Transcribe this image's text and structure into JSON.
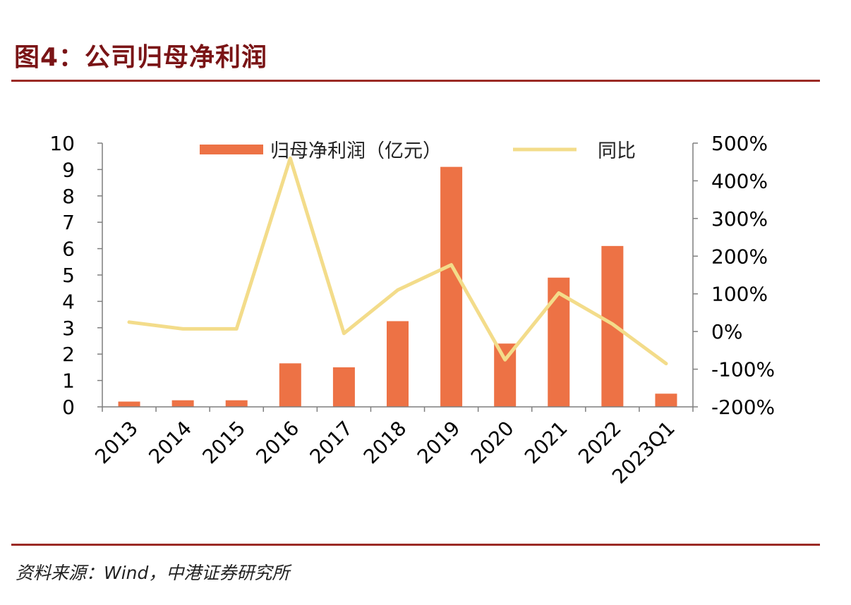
{
  "figure": {
    "title": "图4：公司归母净利润",
    "source": "资料来源：Wind，中港证券研究所"
  },
  "colors": {
    "bar": "#ed7245",
    "line": "#f3dc8a",
    "title": "#7a1416",
    "rule": "#9b2a25",
    "axis": "#7f7f7f"
  },
  "chart_data": {
    "type": "bar",
    "categories": [
      "2013",
      "2014",
      "2015",
      "2016",
      "2017",
      "2018",
      "2019",
      "2020",
      "2021",
      "2022",
      "2023Q1"
    ],
    "series": [
      {
        "name": "归母净利润（亿元）",
        "type": "bar",
        "axis": "left",
        "values": [
          0.2,
          0.25,
          0.25,
          1.65,
          1.5,
          3.25,
          9.1,
          2.4,
          4.9,
          6.1,
          0.5
        ]
      },
      {
        "name": "同比",
        "type": "line",
        "axis": "right",
        "values": [
          25,
          7,
          7,
          460,
          -5,
          110,
          177,
          -75,
          102,
          20,
          -85
        ]
      }
    ],
    "ylim": [
      0,
      10
    ],
    "y2lim": [
      -200,
      500
    ],
    "yticks": [
      "0",
      "1",
      "2",
      "3",
      "4",
      "5",
      "6",
      "7",
      "8",
      "9",
      "10"
    ],
    "y2ticks": [
      "-200%",
      "-100%",
      "0%",
      "100%",
      "200%",
      "300%",
      "400%",
      "500%"
    ],
    "grid": false,
    "legend": "top"
  }
}
